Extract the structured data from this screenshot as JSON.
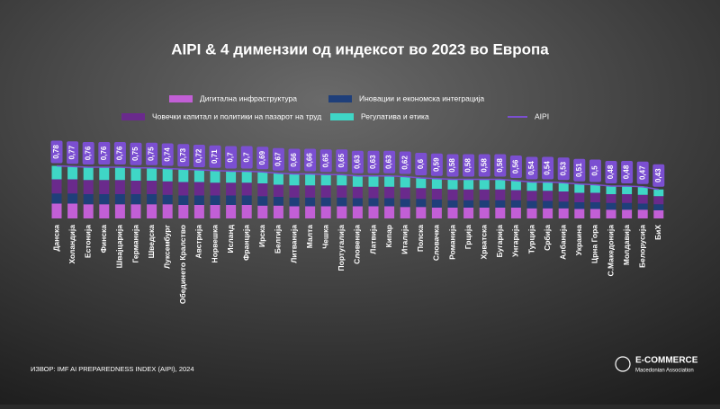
{
  "chart_data": {
    "type": "bar",
    "stacked": true,
    "title": "AIPI & 4 димензии од индексот во 2023 во Европа",
    "categories": [
      "Данска",
      "Холандија",
      "Естонија",
      "Финска",
      "Швајцарија",
      "Германија",
      "Шведска",
      "Луксембург",
      "Обединето Кралство",
      "Австрија",
      "Норвешка",
      "Исланд",
      "Франција",
      "Ирска",
      "Белгија",
      "Литванија",
      "Малта",
      "Чешка",
      "Португалија",
      "Словенија",
      "Латвија",
      "Кипар",
      "Италија",
      "Полска",
      "Словачка",
      "Романија",
      "Грција",
      "Хрватска",
      "Бугарија",
      "Унгарија",
      "Турција",
      "Србија",
      "Албанија",
      "Украина",
      "Црна Гора",
      "С.Македонија",
      "Молдавија",
      "Белорусија",
      "БиХ"
    ],
    "series": [
      {
        "name": "Дигитална инфраструктура",
        "color": "#c25fd6",
        "values": [
          0.22,
          0.22,
          0.21,
          0.21,
          0.21,
          0.21,
          0.21,
          0.21,
          0.2,
          0.2,
          0.2,
          0.2,
          0.2,
          0.19,
          0.19,
          0.18,
          0.18,
          0.18,
          0.18,
          0.18,
          0.18,
          0.18,
          0.17,
          0.17,
          0.16,
          0.16,
          0.16,
          0.16,
          0.16,
          0.16,
          0.15,
          0.15,
          0.15,
          0.14,
          0.14,
          0.13,
          0.13,
          0.13,
          0.12
        ]
      },
      {
        "name": "Иновации и економска интеграција",
        "color": "#1f3f7a",
        "values": [
          0.15,
          0.15,
          0.15,
          0.15,
          0.15,
          0.15,
          0.15,
          0.14,
          0.14,
          0.14,
          0.14,
          0.14,
          0.14,
          0.14,
          0.13,
          0.13,
          0.13,
          0.13,
          0.13,
          0.12,
          0.12,
          0.12,
          0.12,
          0.12,
          0.12,
          0.11,
          0.11,
          0.11,
          0.11,
          0.11,
          0.11,
          0.11,
          0.1,
          0.1,
          0.1,
          0.1,
          0.1,
          0.09,
          0.09
        ]
      },
      {
        "name": "Човечки капитал и политики на пазарот на труд",
        "color": "#6a2a8c",
        "values": [
          0.21,
          0.21,
          0.21,
          0.21,
          0.21,
          0.2,
          0.2,
          0.2,
          0.2,
          0.2,
          0.19,
          0.19,
          0.19,
          0.19,
          0.18,
          0.18,
          0.18,
          0.18,
          0.18,
          0.17,
          0.17,
          0.17,
          0.17,
          0.16,
          0.16,
          0.16,
          0.16,
          0.16,
          0.16,
          0.15,
          0.15,
          0.15,
          0.15,
          0.14,
          0.14,
          0.13,
          0.13,
          0.13,
          0.12
        ]
      },
      {
        "name": "Регулатива и етика",
        "color": "#3fd6c6",
        "values": [
          0.2,
          0.19,
          0.19,
          0.19,
          0.19,
          0.19,
          0.19,
          0.19,
          0.19,
          0.18,
          0.18,
          0.17,
          0.17,
          0.17,
          0.17,
          0.17,
          0.17,
          0.16,
          0.16,
          0.16,
          0.16,
          0.16,
          0.16,
          0.15,
          0.15,
          0.15,
          0.15,
          0.15,
          0.15,
          0.14,
          0.13,
          0.13,
          0.13,
          0.13,
          0.12,
          0.12,
          0.12,
          0.12,
          0.1
        ]
      },
      {
        "name": "AIPI",
        "type": "line",
        "color": "#7b4fd1",
        "values": [
          0.78,
          0.77,
          0.76,
          0.76,
          0.76,
          0.75,
          0.75,
          0.74,
          0.73,
          0.72,
          0.71,
          0.7,
          0.7,
          0.69,
          0.67,
          0.66,
          0.66,
          0.65,
          0.65,
          0.63,
          0.63,
          0.63,
          0.62,
          0.6,
          0.59,
          0.58,
          0.58,
          0.58,
          0.58,
          0.56,
          0.54,
          0.54,
          0.53,
          0.51,
          0.5,
          0.48,
          0.48,
          0.47,
          0.43
        ],
        "value_labels": [
          "0,78",
          "0,77",
          "0,76",
          "0,76",
          "0,76",
          "0,75",
          "0,75",
          "0,74",
          "0,73",
          "0,72",
          "0,71",
          "0,7",
          "0,7",
          "0,69",
          "0,67",
          "0,66",
          "0,66",
          "0,65",
          "0,65",
          "0,63",
          "0,63",
          "0,63",
          "0,62",
          "0,6",
          "0,59",
          "0,58",
          "0,58",
          "0,58",
          "0,58",
          "0,56",
          "0,54",
          "0,54",
          "0,53",
          "0,51",
          "0,5",
          "0,48",
          "0,48",
          "0,47",
          "0,43"
        ]
      }
    ]
  },
  "source": "ИЗВОР: IMF AI PREPAREDNESS INDEX (AIPI), 2024",
  "logo": {
    "title": "E-COMMERCE",
    "subtitle": "Macedonian Association"
  }
}
